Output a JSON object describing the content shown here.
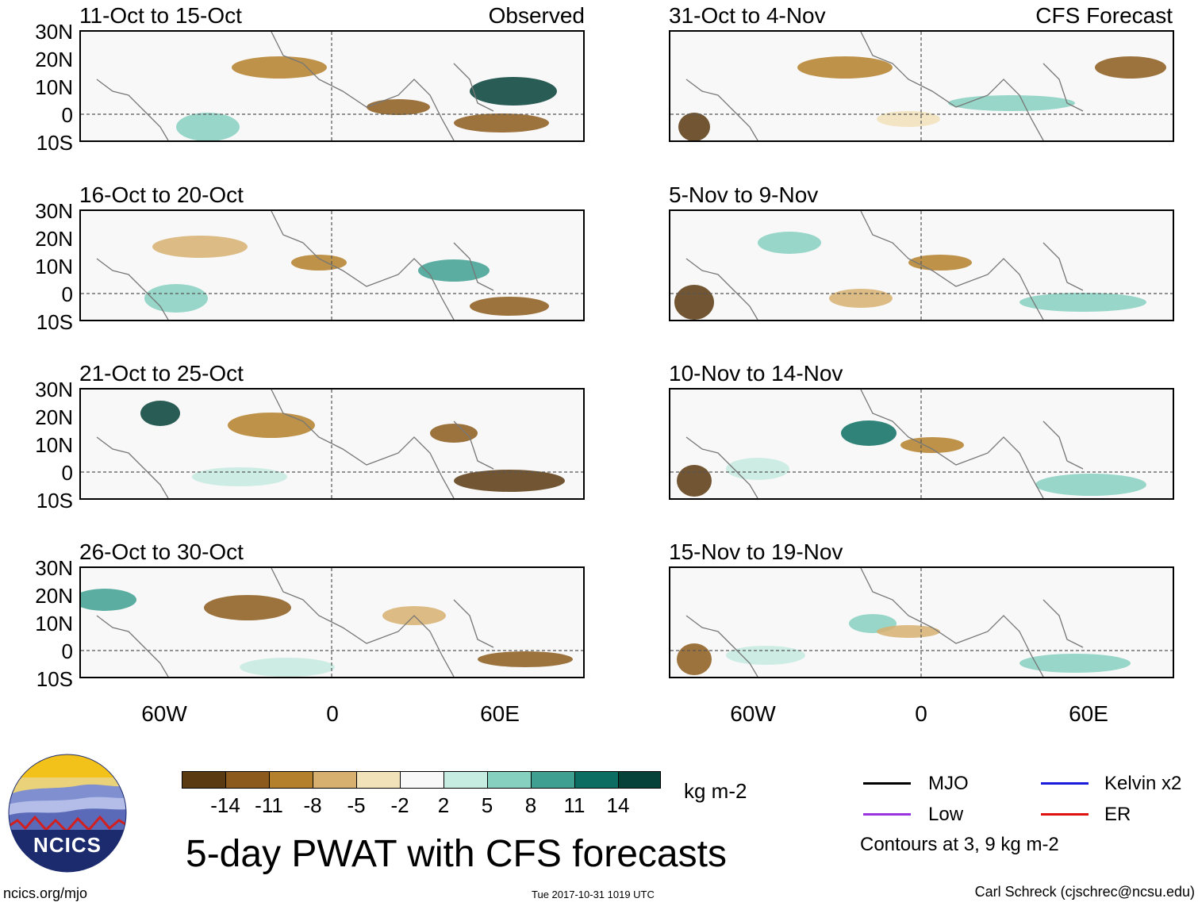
{
  "panels": {
    "left": [
      {
        "title": "11-Oct to 15-Oct",
        "label": "Observed"
      },
      {
        "title": "16-Oct to 20-Oct",
        "label": ""
      },
      {
        "title": "21-Oct to 25-Oct",
        "label": ""
      },
      {
        "title": "26-Oct to 30-Oct",
        "label": ""
      }
    ],
    "right": [
      {
        "title": "31-Oct to 4-Nov",
        "label": "CFS Forecast"
      },
      {
        "title": "5-Nov to 9-Nov",
        "label": ""
      },
      {
        "title": "10-Nov to 14-Nov",
        "label": ""
      },
      {
        "title": "15-Nov to 19-Nov",
        "label": ""
      }
    ]
  },
  "axes": {
    "lat_ticks": [
      "30N",
      "20N",
      "10N",
      "0",
      "10S"
    ],
    "lon_ticks": [
      "60W",
      "0",
      "60E"
    ]
  },
  "colorbar": {
    "colors": [
      "#5a3a10",
      "#8c5a1c",
      "#b5802c",
      "#d7b070",
      "#f2e2ba",
      "#f8f8f8",
      "#c6ebe0",
      "#86d0bf",
      "#3fa092",
      "#0c6e62",
      "#06413a"
    ],
    "labels": [
      "-14",
      "-11",
      "-8",
      "-5",
      "-2",
      "2",
      "5",
      "8",
      "11",
      "14"
    ],
    "unit": "kg m-2"
  },
  "legend": {
    "items": [
      {
        "label": "MJO",
        "color": "#000000"
      },
      {
        "label": "Kelvin x2",
        "color": "#1a1adc"
      },
      {
        "label": "Low",
        "color": "#9a32e0"
      },
      {
        "label": "ER",
        "color": "#e01010"
      }
    ],
    "note": "Contours at 3, 9 kg m-2"
  },
  "logo": {
    "text": "NCICS"
  },
  "title": "5-day PWAT with CFS forecasts",
  "footer": {
    "left": "ncics.org/mjo",
    "center": "Tue 2017-10-31 1019 UTC",
    "right": "Carl Schreck (cjschrec@ncsu.edu)"
  }
}
